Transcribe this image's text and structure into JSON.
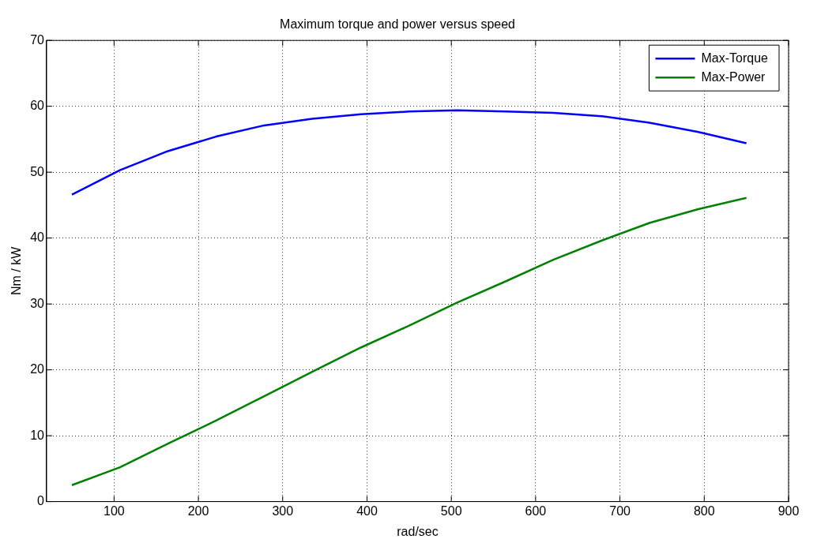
{
  "chart_data": {
    "type": "line",
    "title": "Maximum torque and power versus speed",
    "xlabel": "rad/sec",
    "ylabel": "Nm / kW",
    "x": [
      50,
      107,
      164,
      221,
      278,
      335,
      393,
      450,
      507,
      564,
      621,
      678,
      735,
      793,
      850
    ],
    "series": [
      {
        "name": "Max-Torque",
        "color": "#0000ff",
        "values": [
          46.6,
          50.3,
          53.2,
          55.4,
          57.1,
          58.1,
          58.8,
          59.2,
          59.4,
          59.2,
          59.0,
          58.5,
          57.5,
          56.1,
          54.4
        ]
      },
      {
        "name": "Max-Power",
        "color": "#008000",
        "values": [
          2.5,
          5.2,
          8.8,
          12.3,
          16.0,
          19.7,
          23.4,
          26.7,
          30.2,
          33.4,
          36.7,
          39.6,
          42.3,
          44.4,
          46.1
        ]
      }
    ],
    "xlim": [
      20,
      900
    ],
    "xticks": [
      100,
      200,
      300,
      400,
      500,
      600,
      700,
      800,
      900
    ],
    "ylim": [
      0,
      70
    ],
    "yticks": [
      0,
      10,
      20,
      30,
      40,
      50,
      60,
      70
    ],
    "grid": true,
    "legend": "top right",
    "line_style": "solid",
    "marker": "none"
  }
}
